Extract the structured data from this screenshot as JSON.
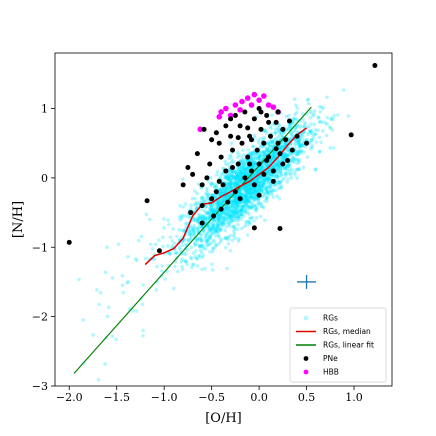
{
  "chart_data": {
    "type": "scatter",
    "title": "",
    "xlabel": "[O/H]",
    "ylabel": "[N/H]",
    "xlim": [
      -2.15,
      1.4
    ],
    "ylim": [
      -3.0,
      1.8
    ],
    "xticks": [
      -2.0,
      -1.5,
      -1.0,
      -0.5,
      0.0,
      0.5,
      1.0
    ],
    "xtick_labels": [
      "−2.0",
      "−1.5",
      "−1.0",
      "−0.5",
      "0.0",
      "0.5",
      "1.0"
    ],
    "yticks": [
      -3,
      -2,
      -1,
      0,
      1
    ],
    "ytick_labels": [
      "−3",
      "−2",
      "−1",
      "0",
      "1"
    ],
    "grid": false,
    "legend_position": "lower-right",
    "series": [
      {
        "name": "RGs",
        "kind": "scatter",
        "color": "#00e5ff",
        "alpha": 0.3,
        "cloud": {
          "count": 2600,
          "x_mean": -0.15,
          "x_std": 0.33,
          "slope": 1.15,
          "intercept": 0.05,
          "scatter_std": 0.24
        }
      },
      {
        "name": "RGs, median",
        "kind": "line",
        "color": "#e00000",
        "x": [
          -1.2,
          -1.1,
          -1.0,
          -0.9,
          -0.8,
          -0.7,
          -0.6,
          -0.5,
          -0.4,
          -0.3,
          -0.2,
          -0.1,
          0.0,
          0.1,
          0.2,
          0.3,
          0.4,
          0.5
        ],
        "y": [
          -1.25,
          -1.12,
          -1.08,
          -1.02,
          -0.87,
          -0.55,
          -0.38,
          -0.36,
          -0.27,
          -0.2,
          -0.12,
          -0.05,
          0.05,
          0.15,
          0.3,
          0.47,
          0.62,
          0.72
        ]
      },
      {
        "name": "RGs, linear fit",
        "kind": "line",
        "color": "#008000",
        "x": [
          -1.95,
          0.55
        ],
        "y": [
          -2.82,
          1.02
        ]
      },
      {
        "name": "PNe",
        "kind": "scatter",
        "color": "#000000",
        "points": [
          [
            -2.0,
            -0.93
          ],
          [
            -1.18,
            -0.33
          ],
          [
            -1.05,
            -1.05
          ],
          [
            0.97,
            0.62
          ],
          [
            1.22,
            1.62
          ],
          [
            0.22,
            -0.73
          ],
          [
            -0.05,
            -0.72
          ],
          [
            0.5,
            0.5
          ],
          [
            -0.8,
            -0.1
          ],
          [
            -0.7,
            0.05
          ],
          [
            -0.72,
            -0.5
          ],
          [
            -0.6,
            -0.1
          ],
          [
            -0.55,
            0.0
          ],
          [
            -0.5,
            -0.3
          ],
          [
            -0.45,
            -0.2
          ],
          [
            -0.42,
            0.5
          ],
          [
            -0.4,
            0.3
          ],
          [
            -0.38,
            -0.1
          ],
          [
            -0.35,
            0.1
          ],
          [
            -0.3,
            0.6
          ],
          [
            -0.28,
            0.4
          ],
          [
            -0.25,
            -0.2
          ],
          [
            -0.22,
            0.2
          ],
          [
            -0.2,
            0.75
          ],
          [
            -0.18,
            0.5
          ],
          [
            -0.15,
            0.0
          ],
          [
            -0.12,
            0.3
          ],
          [
            -0.1,
            0.6
          ],
          [
            -0.08,
            0.1
          ],
          [
            -0.05,
            0.85
          ],
          [
            -0.02,
            0.4
          ],
          [
            0.0,
            0.2
          ],
          [
            0.02,
            0.7
          ],
          [
            0.05,
            0.5
          ],
          [
            0.08,
            0.9
          ],
          [
            0.1,
            0.3
          ],
          [
            0.12,
            0.6
          ],
          [
            0.15,
            0.1
          ],
          [
            0.18,
            0.8
          ],
          [
            0.2,
            0.5
          ],
          [
            0.22,
            0.35
          ],
          [
            0.25,
            0.7
          ],
          [
            0.28,
            0.55
          ],
          [
            0.3,
            0.25
          ],
          [
            -0.6,
            -0.4
          ],
          [
            -0.48,
            -0.55
          ],
          [
            -0.33,
            -0.35
          ],
          [
            -0.25,
            0.9
          ],
          [
            -0.15,
            0.95
          ],
          [
            0.0,
            1.0
          ],
          [
            -0.65,
            0.35
          ],
          [
            -0.5,
            0.55
          ],
          [
            -0.35,
            0.75
          ],
          [
            -0.1,
            0.2
          ],
          [
            0.05,
            0.05
          ],
          [
            0.15,
            -0.05
          ],
          [
            -0.2,
            -0.3
          ],
          [
            -0.05,
            -0.1
          ],
          [
            0.1,
            0.8
          ],
          [
            0.35,
            0.4
          ],
          [
            -0.75,
            0.15
          ],
          [
            -0.58,
            0.7
          ],
          [
            -0.45,
            0.65
          ],
          [
            -0.28,
            0.15
          ],
          [
            -0.08,
            0.55
          ],
          [
            0.08,
            0.25
          ],
          [
            0.2,
            0.95
          ],
          [
            0.4,
            0.6
          ],
          [
            -0.4,
            -0.45
          ],
          [
            -0.6,
            -0.65
          ],
          [
            -0.3,
            0.85
          ],
          [
            -0.12,
            0.72
          ],
          [
            0.02,
            0.95
          ],
          [
            0.18,
            0.42
          ],
          [
            -0.52,
            0.2
          ],
          [
            -0.42,
            -0.05
          ],
          [
            -0.22,
            0.58
          ],
          [
            0.0,
            -0.25
          ],
          [
            0.25,
            0.2
          ],
          [
            0.32,
            0.82
          ]
        ]
      },
      {
        "name": "HBB",
        "kind": "scatter",
        "color": "#ff00ff",
        "points": [
          [
            -0.62,
            0.7
          ],
          [
            -0.4,
            0.95
          ],
          [
            -0.42,
            0.88
          ],
          [
            -0.35,
            1.0
          ],
          [
            -0.25,
            1.05
          ],
          [
            -0.18,
            1.1
          ],
          [
            -0.12,
            1.15
          ],
          [
            -0.05,
            1.2
          ],
          [
            0.0,
            1.12
          ],
          [
            0.05,
            1.18
          ],
          [
            0.1,
            1.05
          ],
          [
            0.15,
            1.02
          ],
          [
            -0.3,
            0.9
          ],
          [
            -0.2,
            0.98
          ],
          [
            0.2,
            0.95
          ],
          [
            -0.08,
            1.05
          ]
        ]
      }
    ],
    "error_bar": {
      "x": 0.5,
      "y": -1.5,
      "xerr": 0.1,
      "yerr": 0.1,
      "color": "#1f77b4"
    }
  }
}
